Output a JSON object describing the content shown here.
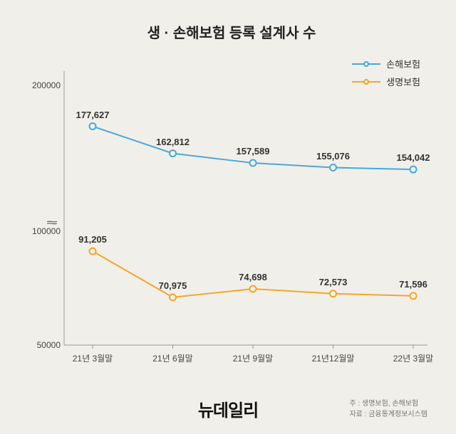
{
  "chart": {
    "title": "생 · 손해보험 등록 설계사 수",
    "title_fontsize": 20,
    "background_color": "#f1efea",
    "categories": [
      "21년 3월말",
      "21년 6월말",
      "21년 9월말",
      "21년12월말",
      "22년 3월말"
    ],
    "series": {
      "nonlife": {
        "label": "손해보험",
        "color": "#4aa8d8",
        "values": [
          177627,
          162812,
          157589,
          155076,
          154042
        ],
        "line_width": 2,
        "marker_style": "circle",
        "marker_size": 9
      },
      "life": {
        "label": "생명보험",
        "color": "#f5a623",
        "values": [
          91205,
          70975,
          74698,
          72573,
          71596
        ],
        "line_width": 2,
        "marker_style": "circle",
        "marker_size": 9
      }
    },
    "y_ticks": [
      50000,
      100000,
      200000
    ],
    "y_tick_labels": [
      "50000",
      "100000",
      "200000"
    ],
    "axis_break_position": 129000,
    "label_fontsize": 12,
    "data_label_fontsize": 13
  },
  "legend": {
    "items": [
      {
        "key": "nonlife",
        "label": "손해보험"
      },
      {
        "key": "life",
        "label": "생명보험"
      }
    ]
  },
  "footer": {
    "logo": "뉴데일리",
    "note1": "주 : 생명보험, 손해보험",
    "note2": "자료 : 금융통계정보시스템"
  }
}
